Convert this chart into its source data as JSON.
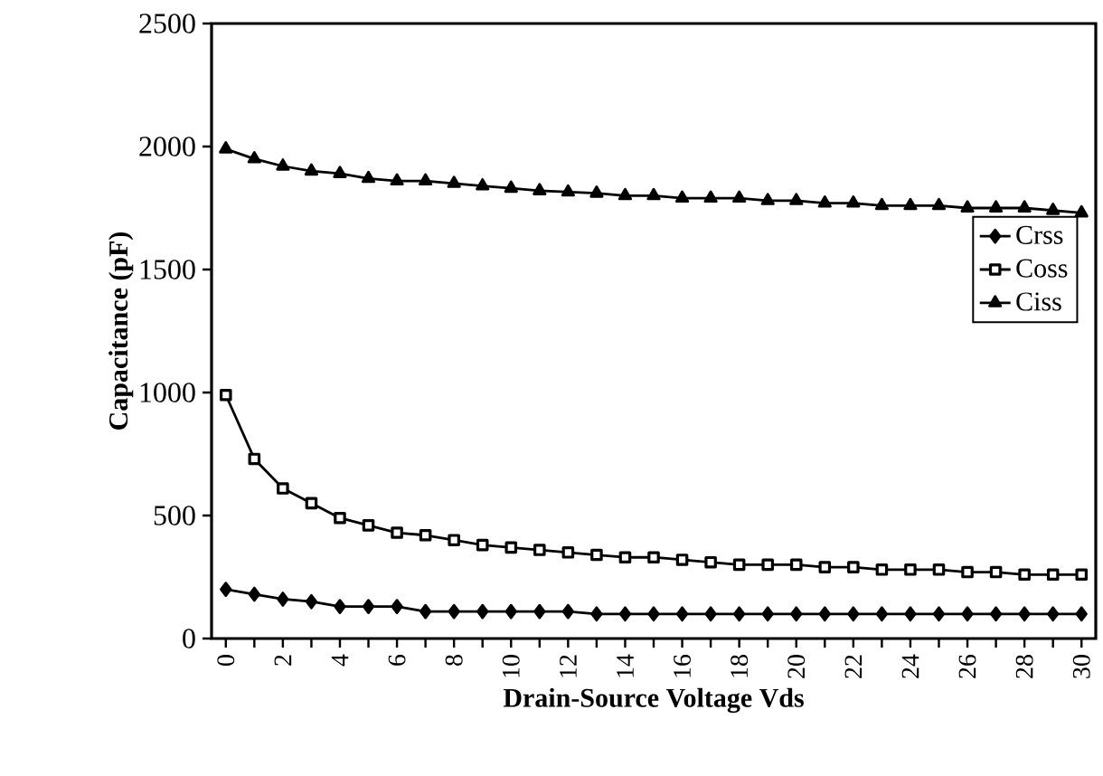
{
  "chart_data": {
    "type": "line",
    "xlabel": "Drain-Source Voltage Vds",
    "ylabel": "Capacitance (pF)",
    "categories": [
      "0",
      null,
      "2",
      null,
      "4",
      null,
      "6",
      null,
      "8",
      null,
      "10",
      null,
      "12",
      null,
      "14",
      null,
      "16",
      null,
      "18",
      null,
      "20",
      null,
      "22",
      null,
      "24",
      null,
      "26",
      null,
      "28",
      null,
      "30"
    ],
    "series": [
      {
        "name": "Crss",
        "color": "#000000",
        "marker": "diamond",
        "values": [
          200,
          180,
          160,
          150,
          130,
          130,
          130,
          110,
          110,
          110,
          110,
          110,
          110,
          100,
          100,
          100,
          100,
          100,
          100,
          100,
          100,
          100,
          100,
          100,
          100,
          100,
          100,
          100,
          100,
          100,
          100
        ]
      },
      {
        "name": "Coss",
        "color": "#000000",
        "marker": "square",
        "values": [
          990,
          730,
          610,
          550,
          490,
          460,
          430,
          420,
          400,
          380,
          370,
          360,
          350,
          340,
          330,
          330,
          320,
          310,
          300,
          300,
          300,
          290,
          290,
          280,
          280,
          280,
          270,
          270,
          260,
          260,
          260
        ]
      },
      {
        "name": "Ciss",
        "color": "#000000",
        "marker": "triangle",
        "values": [
          1990,
          1950,
          1920,
          1900,
          1890,
          1870,
          1860,
          1860,
          1850,
          1840,
          1830,
          1820,
          1815,
          1810,
          1800,
          1800,
          1790,
          1790,
          1790,
          1780,
          1780,
          1770,
          1770,
          1760,
          1760,
          1760,
          1750,
          1750,
          1750,
          1740,
          1730
        ]
      }
    ],
    "ylim": [
      0,
      2500
    ],
    "yticks": [
      0,
      500,
      1000,
      1500,
      2000,
      2500
    ],
    "legend": "right",
    "grid": false
  }
}
